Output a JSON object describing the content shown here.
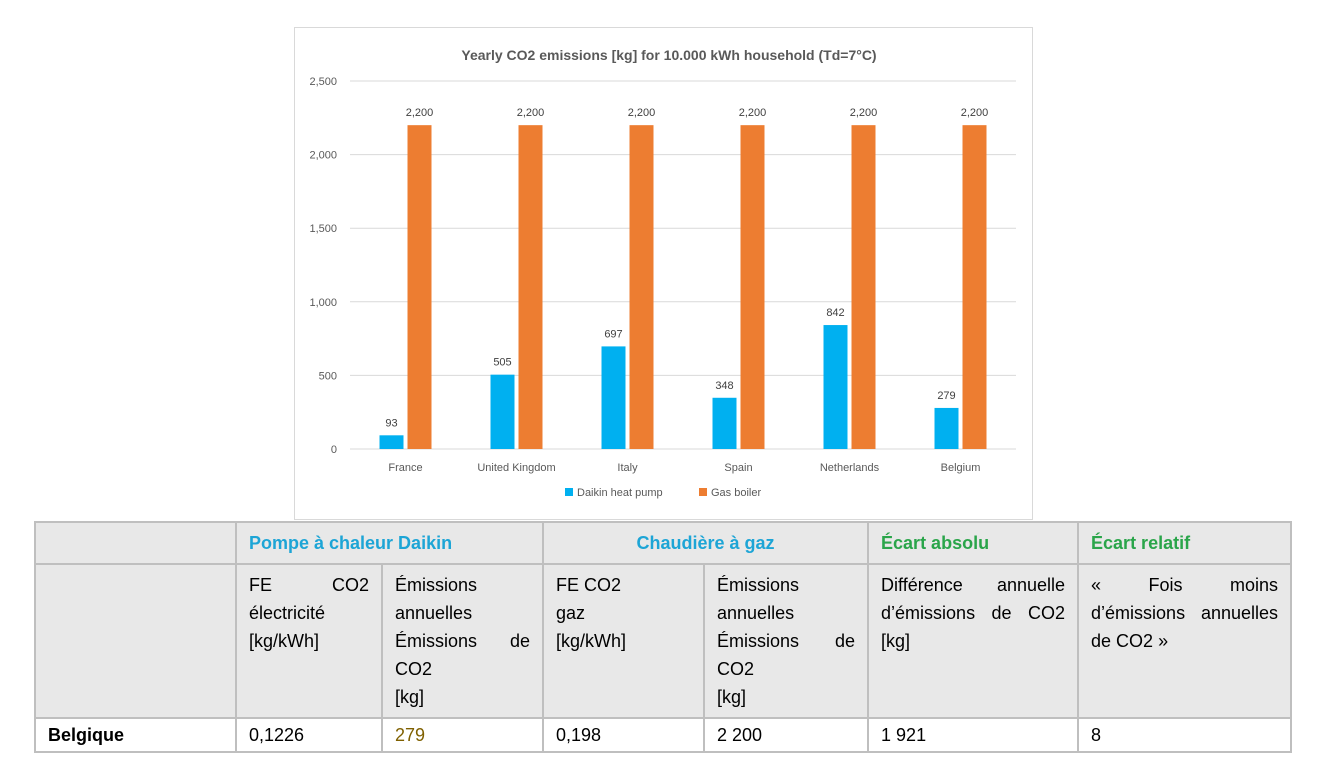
{
  "chart_data": {
    "type": "bar",
    "title": "Yearly CO2 emissions [kg] for 10.000 kWh household (Td=7°C)",
    "categories": [
      "France",
      "United Kingdom",
      "Italy",
      "Spain",
      "Netherlands",
      "Belgium"
    ],
    "series": [
      {
        "name": "Daikin heat pump",
        "values": [
          93,
          505,
          697,
          348,
          842,
          279
        ],
        "labels": [
          "93",
          "505",
          "697",
          "348",
          "842",
          "279"
        ],
        "color": "#00b0f0"
      },
      {
        "name": "Gas boiler",
        "values": [
          2200,
          2200,
          2200,
          2200,
          2200,
          2200
        ],
        "labels": [
          "2,200",
          "2,200",
          "2,200",
          "2,200",
          "2,200",
          "2,200"
        ],
        "color": "#ed7d31"
      }
    ],
    "yticks": [
      0,
      500,
      1000,
      1500,
      2000,
      2500
    ],
    "ytick_labels": [
      "0",
      "500",
      "1,000",
      "1,500",
      "2,000",
      "2,500"
    ],
    "ylim": [
      0,
      2500
    ],
    "xlabel": "",
    "ylabel": "",
    "grid": true,
    "legend_position": "bottom",
    "grid_color": "#d9d9d9"
  },
  "table": {
    "headers": {
      "col1": "",
      "pompe": "Pompe à chaleur Daikin",
      "chaudiere": "Chaudière à gaz",
      "ecart_absolu": "Écart absolu",
      "ecart_relatif": "Écart relatif"
    },
    "subheaders": {
      "col1": "",
      "fe_elec": "FE CO2 électricité [kg/kWh]",
      "em_pompe": "Émissions annuelles\nÉmissions de CO2\n[kg]",
      "fe_gaz": "FE CO2\ngaz\n[kg/kWh]",
      "em_gaz": "Émissions annuelles\nÉmissions de CO2\n[kg]",
      "diff": "Différence annuelle d’émissions de CO2 [kg]",
      "fois": "« Fois moins d’émissions annuelles de CO2 »"
    },
    "row": {
      "country": "Belgique",
      "fe_elec": "0,1226",
      "em_pompe": "279",
      "fe_gaz": "0,198",
      "em_gaz": "2 200",
      "diff": "1 921",
      "fois": "8"
    }
  }
}
